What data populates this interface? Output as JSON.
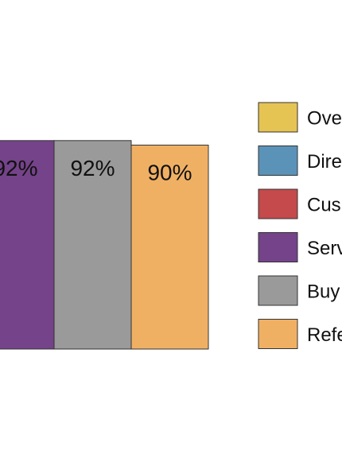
{
  "chart_data": {
    "type": "bar",
    "series": [
      {
        "name": "Ove",
        "value": null,
        "label": "",
        "color": "#E6C453"
      },
      {
        "name": "Dire",
        "value": null,
        "label": "",
        "color": "#5B93B8"
      },
      {
        "name": "Cus",
        "value": null,
        "label": "",
        "color": "#C44A4B"
      },
      {
        "name": "Serv",
        "value": 92,
        "label": "92%",
        "color": "#744389"
      },
      {
        "name": "Buy",
        "value": 92,
        "label": "92%",
        "color": "#9A9A9A"
      },
      {
        "name": "Refe",
        "value": 90,
        "label": "90%",
        "color": "#F0B064"
      }
    ],
    "legend_position": "right",
    "grid": false
  }
}
